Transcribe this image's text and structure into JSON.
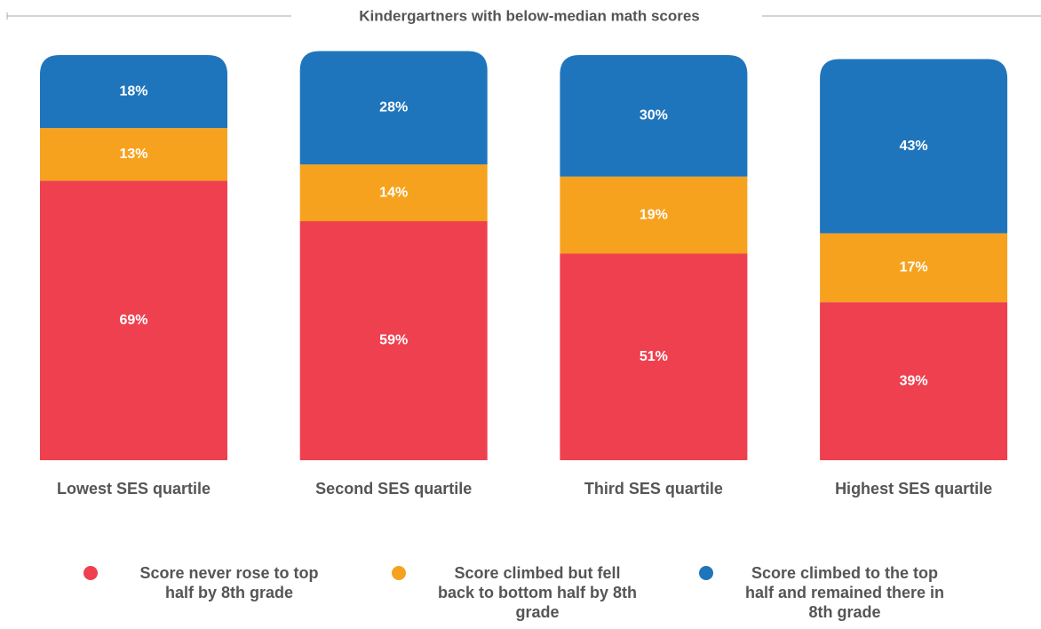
{
  "chart_data": {
    "type": "stacked_bar",
    "title": "Kindergartners with below-median math scores",
    "categories": [
      "Lowest SES quartile",
      "Second SES quartile",
      "Third SES quartile",
      "Highest SES quartile"
    ],
    "ylim": [
      0,
      100
    ],
    "series": [
      {
        "name": "Score never rose to top half by 8th grade",
        "color": "#ef404f",
        "values": [
          69,
          59,
          51,
          39
        ],
        "value_labels": [
          "69%",
          "59%",
          "51%",
          "39%"
        ]
      },
      {
        "name": "Score climbed but fell back to bottom half by 8th grade",
        "color": "#f7a21e",
        "values": [
          13,
          14,
          19,
          17
        ],
        "value_labels": [
          "13%",
          "14%",
          "19%",
          "17%"
        ]
      },
      {
        "name": "Score climbed to the top half and remained there in 8th grade",
        "color": "#1f75bc",
        "values": [
          18,
          28,
          30,
          43
        ],
        "value_labels": [
          "18%",
          "28%",
          "30%",
          "43%"
        ]
      }
    ]
  }
}
